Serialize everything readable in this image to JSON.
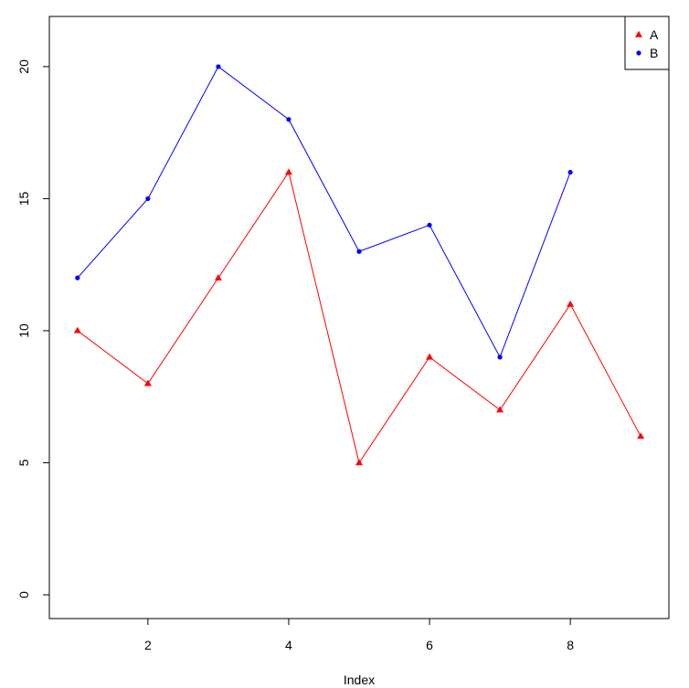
{
  "chart_data": {
    "type": "line",
    "title": "",
    "xlabel": "Index",
    "ylabel": "",
    "xlim": [
      0.6,
      9.4
    ],
    "ylim": [
      -0.9,
      21.9
    ],
    "x_ticks": [
      2,
      4,
      6,
      8
    ],
    "y_ticks": [
      0,
      5,
      10,
      15,
      20
    ],
    "series": [
      {
        "name": "A",
        "color": "#ff0000",
        "marker": "triangle",
        "x": [
          1,
          2,
          3,
          4,
          5,
          6,
          7,
          8,
          9
        ],
        "values": [
          10,
          8,
          12,
          16,
          5,
          9,
          7,
          11,
          6
        ]
      },
      {
        "name": "B",
        "color": "#0000ff",
        "marker": "circle",
        "x": [
          1,
          2,
          3,
          4,
          5,
          6,
          7,
          8
        ],
        "values": [
          12,
          15,
          20,
          18,
          13,
          14,
          9,
          16
        ]
      }
    ],
    "legend": {
      "placement": "top-right"
    },
    "grid": false
  }
}
